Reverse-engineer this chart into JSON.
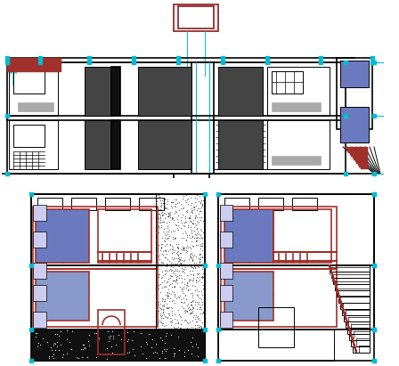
{
  "bg_color": "#ffffff",
  "line_color": "#000000",
  "cyan_color": "#00bcd4",
  "dark_red": "#8b1a1a",
  "brown_red": "#a0302a",
  "blue_fill": "#6b7abf",
  "blue_fill2": "#8899cc",
  "gray_fill": "#aaaaaa",
  "dark_gray": "#444444",
  "black_fill": "#111111",
  "noise_color": "#888888",
  "light_blue": "#b0c8e8",
  "fig_width": 4.48,
  "fig_height": 4.11,
  "dpi": 100
}
